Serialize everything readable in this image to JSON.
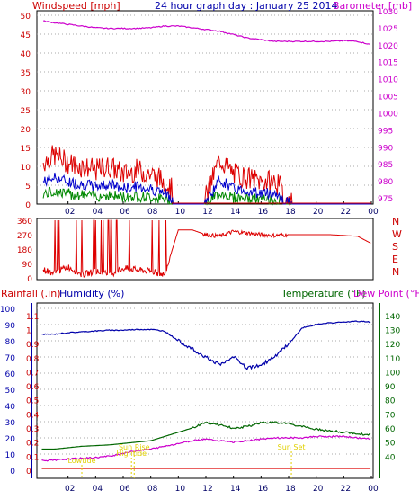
{
  "title": "24 hour graph day : January 25 2014",
  "x_ticks": [
    "02",
    "04",
    "06",
    "08",
    "10",
    "12",
    "14",
    "16",
    "18",
    "20",
    "22",
    "00"
  ],
  "colors": {
    "wind": "#dd0000",
    "gust_fill": "#dd0000",
    "avg_wind": "#0000cc",
    "calm_wind": "#008800",
    "barometer": "#cc00cc",
    "direction": "#dd0000",
    "humidity": "#0000aa",
    "temperature": "#006600",
    "dewpoint": "#cc00cc",
    "rainfall": "#dd0000",
    "label_yellow": "#e0d000",
    "frame": "#000000",
    "dotgrid": "#aaaaaa"
  },
  "panel1": {
    "left_label": "Windspeed [mph]",
    "right_label": "Barometer [mb]",
    "left_ticks": [
      "0",
      "5",
      "10",
      "15",
      "20",
      "25",
      "30",
      "35",
      "40",
      "45",
      "50"
    ],
    "right_ticks": [
      "975",
      "980",
      "985",
      "990",
      "995",
      "1000",
      "1005",
      "1010",
      "1015",
      "1020",
      "1025",
      "1030"
    ]
  },
  "panel2": {
    "left_ticks": [
      "0",
      "90",
      "180",
      "270",
      "360"
    ],
    "compass": [
      "N",
      "W",
      "S",
      "E",
      "N"
    ]
  },
  "panel3": {
    "label_rain": "Rainfall (.in)",
    "label_humidity": "Humidity (%)",
    "label_temp": "Temperature (°F)",
    "label_dew": "Dew Point (°F)",
    "rain_ticks": [
      "0",
      "0.1",
      "0.2",
      "0.3",
      "0.4",
      "0.5",
      "0.6",
      "0.7",
      "0.8",
      "0.9",
      "1",
      "1.1"
    ],
    "humidity_ticks": [
      "0",
      "10",
      "20",
      "30",
      "40",
      "50",
      "60",
      "70",
      "80",
      "90",
      "100"
    ],
    "temp_ticks": [
      "40",
      "50",
      "60",
      "70",
      "80",
      "90",
      "100",
      "110",
      "120",
      "130",
      "140"
    ],
    "annotations": [
      "Lowtide",
      "Sun Rise",
      "Hightide",
      "Sun Set"
    ]
  },
  "chart_data": [
    {
      "type": "line",
      "title": "24 hour graph day : January 25 2014",
      "xlabel": "",
      "x": [
        0.2,
        1,
        2,
        3,
        4,
        5,
        6,
        7,
        8,
        9,
        10,
        11,
        12,
        13,
        14,
        15,
        16,
        17,
        18,
        19,
        20,
        21,
        22,
        23,
        24
      ],
      "ylim": [
        0,
        50
      ],
      "ylim_right": [
        975,
        1030
      ],
      "series": [
        {
          "name": "Windspeed [mph]",
          "axis": "left",
          "values": [
            9,
            11,
            9,
            8,
            7,
            8,
            6,
            7,
            6,
            4,
            0,
            0,
            0,
            10,
            6,
            5,
            4,
            4,
            0,
            0,
            0,
            0,
            0,
            0,
            0
          ]
        },
        {
          "name": "Barometer [mb]",
          "axis": "right",
          "values": [
            1027,
            1026.5,
            1026,
            1025.5,
            1025,
            1024.8,
            1024.8,
            1024.8,
            1025,
            1025.5,
            1025.5,
            1025,
            1024.5,
            1024,
            1023,
            1022,
            1021.5,
            1021,
            1021,
            1021,
            1021,
            1021,
            1021.2,
            1021,
            1020
          ]
        }
      ]
    },
    {
      "type": "line",
      "title": "",
      "x": [
        0.2,
        1,
        2,
        3,
        4,
        5,
        6,
        7,
        8,
        9,
        10,
        11,
        12,
        13,
        14,
        15,
        16,
        17,
        18,
        19,
        20,
        21,
        22,
        23,
        24
      ],
      "ylim": [
        0,
        360
      ],
      "series": [
        {
          "name": "",
          "values": [
            50,
            30,
            70,
            20,
            40,
            20,
            60,
            50,
            40,
            20,
            300,
            300,
            270,
            260,
            290,
            280,
            270,
            265,
            270,
            270,
            270,
            270,
            265,
            260,
            215
          ]
        }
      ]
    },
    {
      "type": "line",
      "title": "",
      "x": [
        0,
        1,
        2,
        3,
        4,
        5,
        6,
        7,
        8,
        9,
        10,
        11,
        12,
        13,
        14,
        15,
        16,
        17,
        18,
        19,
        20,
        21,
        22,
        23,
        24
      ],
      "ylim": [
        0,
        100
      ],
      "ylim_right": [
        30,
        145
      ],
      "ylim_rain": [
        0,
        1.15
      ],
      "series": [
        {
          "name": "Humidity (%)",
          "axis": "left",
          "values": [
            84,
            84,
            85,
            85.5,
            86,
            86.5,
            86.5,
            87,
            87,
            86,
            80,
            75,
            70,
            65,
            70,
            63,
            65,
            70,
            78,
            88,
            90,
            91,
            91.5,
            92,
            91.5
          ]
        },
        {
          "name": "Temperature (°F)",
          "axis": "right",
          "values": [
            45,
            45,
            46,
            47,
            47.5,
            48,
            49,
            50,
            51,
            54,
            57,
            60,
            64,
            62,
            60,
            61,
            64,
            64,
            63,
            61,
            59,
            58,
            57,
            56,
            55
          ]
        },
        {
          "name": "Dew Point (°F)",
          "axis": "right",
          "values": [
            37,
            37,
            38,
            38.5,
            39,
            40,
            42,
            44,
            45,
            47,
            49,
            51,
            52,
            51,
            50,
            51,
            52,
            53,
            53,
            53,
            54,
            54,
            54,
            53,
            52
          ]
        },
        {
          "name": "Rainfall (.in)",
          "axis": "rain",
          "values": [
            0,
            0,
            0,
            0,
            0,
            0,
            0,
            0,
            0,
            0,
            0,
            0,
            0,
            0,
            0,
            0,
            0,
            0,
            0,
            0,
            0,
            0,
            0,
            0,
            0
          ]
        }
      ]
    }
  ]
}
